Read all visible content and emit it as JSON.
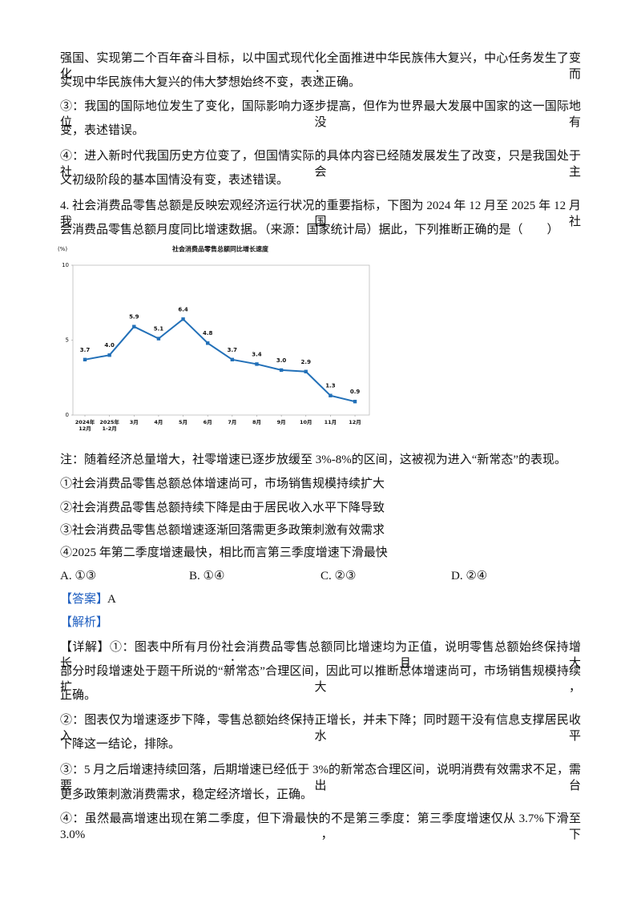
{
  "intro_lines": [
    "强国、实现第二个百年奋斗目标，以中国式现代化全面推进中华民族伟大复兴，中心任务发生了变化；而",
    "实现中华民族伟大复兴的伟大梦想始终不变，表述正确。",
    "③：我国的国际地位发生了变化，国际影响力逐步提高，但作为世界最大发展中国家的这一国际地位没有",
    "变，表述错误。",
    "④：进入新时代我国历史方位变了，但国情实际的具体内容已经随发展发生了改变，只是我国处于社会主",
    "义初级阶段的基本国情没有变，表述错误。",
    "4. 社会消费品零售总额是反映宏观经济运行状况的重要指标，下图为 2024 年 12 月至 2025 年 12 月我国社",
    "会消费品零售总额月度同比增速数据。（来源：国家统计局）据此，下列推断正确的是（　　）"
  ],
  "chart_data": {
    "type": "line",
    "title": "社会消费品零售总额同比增长速度",
    "y_label": "(%)",
    "categories": [
      "2024年\n12月",
      "2025年\n1-2月",
      "3月",
      "4月",
      "5月",
      "6月",
      "7月",
      "8月",
      "9月",
      "10月",
      "11月",
      "12月"
    ],
    "values": [
      3.7,
      4.0,
      5.9,
      5.1,
      6.4,
      4.8,
      3.7,
      3.4,
      3.0,
      2.9,
      1.3,
      0.9
    ],
    "value_labels": [
      "3.7",
      "4.0",
      "5.9",
      "5.1",
      "6.4",
      "4.8",
      "3.7",
      "3.4",
      "3.0",
      "2.9",
      "1.3",
      "0.9"
    ],
    "color": "#2270b8",
    "ylim": [
      0,
      10
    ],
    "yticks": [
      0,
      5,
      10
    ]
  },
  "note": "注：随着经济总量增大，社零增速已逐步放缓至 3%-8%的区间，这被视为进入“新常态”的表现。",
  "statements": [
    "①社会消费品零售总额总体增速尚可，市场销售规模持续扩大",
    "②社会消费品零售总额持续下降是由于居民收入水平下降导致",
    "③社会消费品零售总额增速逐渐回落需更多政策刺激有效需求",
    "④2025 年第二季度增速最快，相比而言第三季度增速下滑最快"
  ],
  "options": [
    "A. ①③",
    "B. ①④",
    "C. ②③",
    "D. ②④"
  ],
  "answer": {
    "tag": "【答案】",
    "text": "A"
  },
  "analysis_tag": "【解析】",
  "analysis_lines": [
    "【详解】①：图表中所有月份社会消费品零售总额同比增速均为正值，说明零售总额始终保持增长；且大",
    "部分时段增速处于题干所说的“新常态”合理区间，因此可以推断总体增速尚可，市场销售规模持续扩大，",
    "正确。",
    "②：图表仅为增速逐步下降，零售总额始终保持正增长，并未下降；同时题干没有信息支撑居民收入水平",
    "下降这一结论，排除。",
    "③：5 月之后增速持续回落，后期增速已经低于 3%的新常态合理区间，说明消费有效需求不足，需要出台",
    "更多政策刺激消费需求，稳定经济增长，正确。",
    "④：虽然最高增速出现在第二季度，但下滑最快的不是第三季度：第三季度增速仅从 3.7%下滑至 3.0%，下"
  ]
}
